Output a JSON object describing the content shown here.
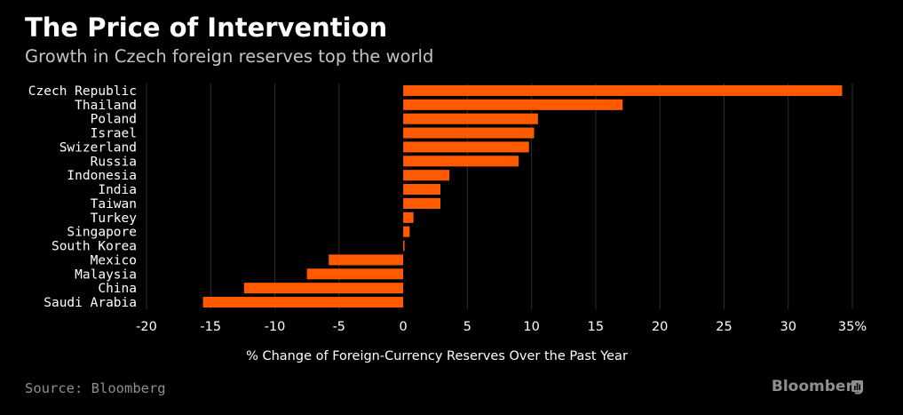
{
  "header": {
    "title": "The Price of Intervention",
    "subtitle": "Growth in Czech foreign reserves top the world"
  },
  "footer": {
    "source": "Source: Bloomberg",
    "brand": "Bloomberg"
  },
  "colors": {
    "bar": "#ff5a00",
    "background": "#000000",
    "gridline": "#2e2e2e",
    "text": "#ffffff",
    "muted": "#8f8f8f"
  },
  "chart_data": {
    "type": "bar",
    "orientation": "horizontal",
    "categories": [
      "Czech Republic",
      "Thailand",
      "Poland",
      "Israel",
      "Swizerland",
      "Russia",
      "Indonesia",
      "India",
      "Taiwan",
      "Turkey",
      "Singapore",
      "South Korea",
      "Mexico",
      "Malaysia",
      "China",
      "Saudi Arabia"
    ],
    "values": [
      34.2,
      17.1,
      10.5,
      10.2,
      9.8,
      9.0,
      3.6,
      2.9,
      2.9,
      0.8,
      0.5,
      0.1,
      -5.8,
      -7.5,
      -12.4,
      -15.6
    ],
    "xlabel": "% Change of Foreign-Currency Reserves Over the Past Year",
    "ylabel": "",
    "xlim": [
      -20,
      35
    ],
    "xticks": [
      "-20",
      "-15",
      "-10",
      "-5",
      "0",
      "5",
      "10",
      "15",
      "20",
      "25",
      "30",
      "35%"
    ],
    "grid": true
  }
}
